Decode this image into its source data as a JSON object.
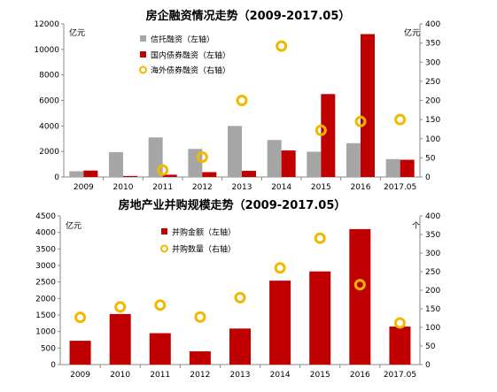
{
  "chart_data": [
    {
      "type": "bar",
      "title": "房企融资情况走势（2009-2017.05）",
      "categories": [
        "2009",
        "2010",
        "2011",
        "2012",
        "2013",
        "2014",
        "2015",
        "2016",
        "2017.05"
      ],
      "left_unit": "亿元",
      "right_unit": "亿元",
      "ylim_left": [
        0,
        12000
      ],
      "ylim_right": [
        0,
        400
      ],
      "left_ticks": [
        0,
        2000,
        4000,
        6000,
        8000,
        10000,
        12000
      ],
      "right_ticks": [
        0,
        50,
        100,
        150,
        200,
        250,
        300,
        350,
        400
      ],
      "series": [
        {
          "name": "信托融资（左轴）",
          "type": "bar",
          "axis": "left",
          "color": "#a6a6a6",
          "values": [
            450,
            1950,
            3100,
            2200,
            4000,
            2900,
            1980,
            2650,
            1400
          ]
        },
        {
          "name": "国内债券融资（左轴）",
          "type": "bar",
          "axis": "left",
          "color": "#c00000",
          "values": [
            500,
            80,
            180,
            380,
            480,
            2080,
            6500,
            11200,
            1350
          ]
        },
        {
          "name": "海外债券融资（右轴）",
          "type": "scatter",
          "axis": "right",
          "color": "#f2b800",
          "values": [
            null,
            null,
            18,
            52,
            200,
            342,
            122,
            145,
            150
          ]
        }
      ]
    },
    {
      "type": "bar",
      "title": "房地产业并购规模走势（2009-2017.05）",
      "categories": [
        "2009",
        "2010",
        "2011",
        "2012",
        "2013",
        "2014",
        "2015",
        "2016",
        "2017.05"
      ],
      "left_unit": "亿元",
      "right_unit": "个",
      "ylim_left": [
        0,
        4500
      ],
      "ylim_right": [
        0,
        400
      ],
      "left_ticks": [
        0,
        500,
        1000,
        1500,
        2000,
        2500,
        3000,
        3500,
        4000,
        4500
      ],
      "right_ticks": [
        0,
        50,
        100,
        150,
        200,
        250,
        300,
        350,
        400
      ],
      "series": [
        {
          "name": "并购金额（左轴）",
          "type": "bar",
          "axis": "left",
          "color": "#c00000",
          "values": [
            720,
            1530,
            950,
            400,
            1090,
            2540,
            2820,
            4100,
            1150
          ]
        },
        {
          "name": "并购数量（右轴）",
          "type": "scatter",
          "axis": "right",
          "color": "#f2b800",
          "values": [
            127,
            155,
            160,
            128,
            180,
            260,
            340,
            215,
            112
          ]
        }
      ]
    }
  ]
}
